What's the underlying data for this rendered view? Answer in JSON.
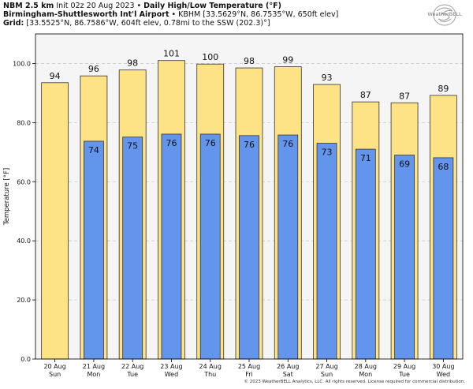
{
  "header": {
    "model": "NBM 2.5 km",
    "init": "Init 02z 20 Aug 2023",
    "sep": "•",
    "product": "Daily High/Low Temperature (°F)",
    "location_name": "Birmingham-Shuttlesworth Int'l Airport",
    "location_detail": "KBHM [33.5629°N, 86.7535°W, 650ft elev]",
    "grid_label": "Grid:",
    "grid_detail": "[33.5525°N, 86.7586°W, 604ft elev, 0.78mi to the SSW (202.3)°]"
  },
  "logo": {
    "text": "WeatherBELL",
    "icon": "weatherbell-swirl-icon"
  },
  "footer": "© 2023 WeatherBELL Analytics, LLC. All rights reserved. License required for commercial distribution.",
  "colors": {
    "high": "#FDE385",
    "low": "#6495ED",
    "plot_bg": "#F5F5F5",
    "grid": "#CCCCCC"
  },
  "chart_data": {
    "type": "bar",
    "ylabel": "Temperature [°F]",
    "ylim": [
      0,
      110
    ],
    "yticks": [
      "0.0",
      "20.0",
      "40.0",
      "60.0",
      "80.0",
      "100.0"
    ],
    "grid": true,
    "categories": [
      [
        "20 Aug",
        "Sun"
      ],
      [
        "21 Aug",
        "Mon"
      ],
      [
        "22 Aug",
        "Tue"
      ],
      [
        "23 Aug",
        "Wed"
      ],
      [
        "24 Aug",
        "Thu"
      ],
      [
        "25 Aug",
        "Fri"
      ],
      [
        "26 Aug",
        "Sat"
      ],
      [
        "27 Aug",
        "Sun"
      ],
      [
        "28 Aug",
        "Mon"
      ],
      [
        "29 Aug",
        "Tue"
      ],
      [
        "30 Aug",
        "Wed"
      ]
    ],
    "series": [
      {
        "key": "high",
        "values": [
          93.5,
          95.8,
          97.8,
          101.0,
          99.8,
          98.5,
          98.9,
          92.9,
          87.0,
          86.7,
          89.2
        ],
        "labels": [
          "94",
          "96",
          "98",
          "101",
          "100",
          "98",
          "99",
          "93",
          "87",
          "87",
          "89"
        ]
      },
      {
        "key": "low",
        "values": [
          null,
          73.7,
          75.1,
          76.1,
          76.1,
          75.6,
          75.8,
          73.0,
          71.0,
          69.0,
          68.1
        ],
        "labels": [
          "",
          "74",
          "75",
          "76",
          "76",
          "76",
          "76",
          "73",
          "71",
          "69",
          "68"
        ]
      }
    ]
  }
}
